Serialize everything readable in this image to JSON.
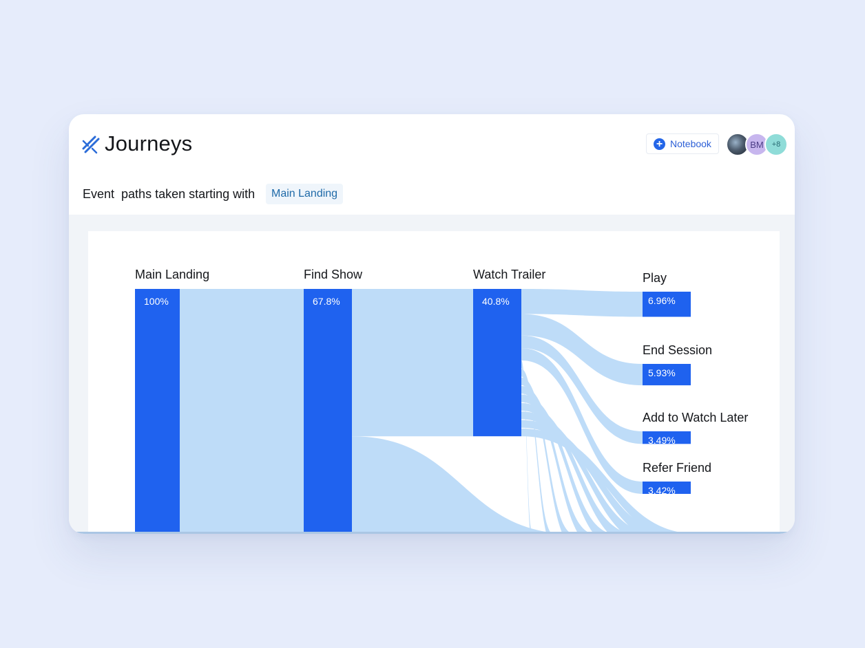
{
  "app": {
    "title": "Journeys",
    "logo_icon": "journeys-logo-icon",
    "notebook_button": {
      "label": "Notebook",
      "icon": "plus-circle-icon"
    },
    "avatars": [
      {
        "type": "photo",
        "label": ""
      },
      {
        "type": "initials",
        "label": "BM"
      },
      {
        "type": "count",
        "label": "+8"
      }
    ]
  },
  "query": {
    "text": "Event  paths taken starting with",
    "start_event": "Main Landing"
  },
  "colors": {
    "node": "#1f62ef",
    "link": "#bedcf8",
    "background": "#e6ecfb",
    "accent": "#2466e8"
  },
  "chart_data": {
    "type": "sankey",
    "unit": "% of users",
    "columns": [
      {
        "name": "Main Landing",
        "value_label": "100%",
        "value": 100
      },
      {
        "name": "Find Show",
        "value_label": "67.8%",
        "value": 67.8
      },
      {
        "name": "Watch Trailer",
        "value_label": "40.8%",
        "value": 40.8
      }
    ],
    "outcomes": [
      {
        "name": "Play",
        "value_label": "6.96%",
        "value": 6.96
      },
      {
        "name": "End Session",
        "value_label": "5.93%",
        "value": 5.93
      },
      {
        "name": "Add to Watch Later",
        "value_label": "3.49%",
        "value": 3.49
      },
      {
        "name": "Refer Friend",
        "value_label": "3.42%",
        "value": 3.42
      }
    ]
  }
}
